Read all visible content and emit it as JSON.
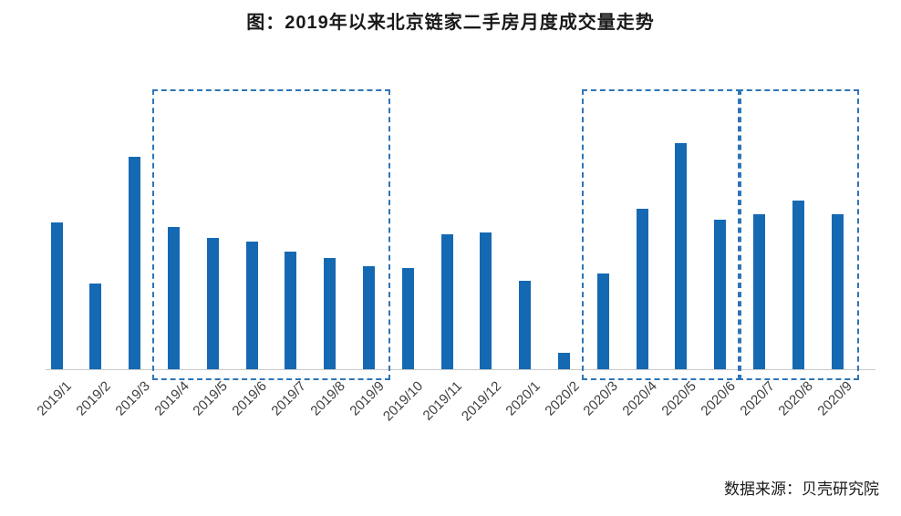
{
  "title": "图：2019年以来北京链家二手房月度成交量走势",
  "source": "数据来源：贝壳研究院",
  "colors": {
    "bar": "#1569b3",
    "box_border": "#2e75b6",
    "axis": "#c9c9c9",
    "label": "#404040"
  },
  "chart_data": {
    "type": "bar",
    "title": "图：2019年以来北京链家二手房月度成交量走势",
    "xlabel": "",
    "ylabel": "",
    "categories": [
      "2019/1",
      "2019/2",
      "2019/3",
      "2019/4",
      "2019/5",
      "2019/6",
      "2019/7",
      "2019/8",
      "2019/9",
      "2019/10",
      "2019/11",
      "2019/12",
      "2020/1",
      "2020/2",
      "2020/3",
      "2020/4",
      "2020/5",
      "2020/6",
      "2020/7",
      "2020/8",
      "2020/9"
    ],
    "values": [
      161,
      94,
      233,
      156,
      144,
      140,
      129,
      122,
      113,
      111,
      148,
      150,
      97,
      18,
      105,
      176,
      248,
      164,
      170,
      185,
      170
    ],
    "value_note": "relative units estimated from bar heights; no y-axis ticks shown in source chart",
    "ylim": [
      0,
      310
    ],
    "y_axis_visible": false,
    "grid": false,
    "legend": false,
    "highlight_boxes": [
      {
        "from": "2019/4",
        "to": "2019/9"
      },
      {
        "from": "2020/3",
        "to": "2020/6"
      },
      {
        "from": "2020/7",
        "to": "2020/9"
      }
    ]
  }
}
